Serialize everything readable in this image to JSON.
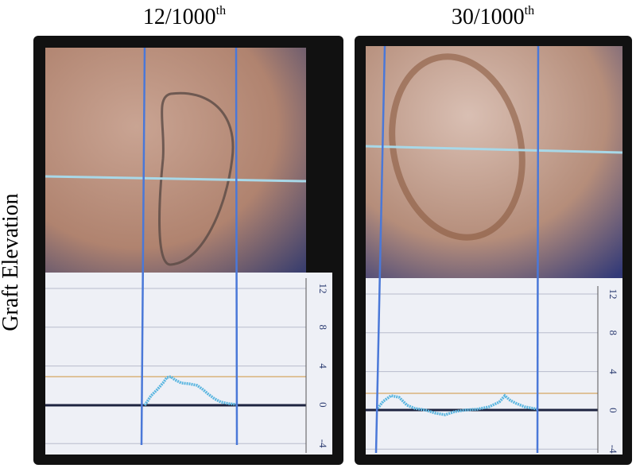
{
  "y_axis_label": "Graft Elevation",
  "panels": [
    {
      "title": "12/1000",
      "title_superscript": "th",
      "yticks": [
        12,
        8,
        4,
        0,
        -4
      ]
    },
    {
      "title": "30/1000",
      "title_superscript": "th",
      "yticks": [
        12,
        8,
        4,
        0,
        -4
      ]
    }
  ]
}
